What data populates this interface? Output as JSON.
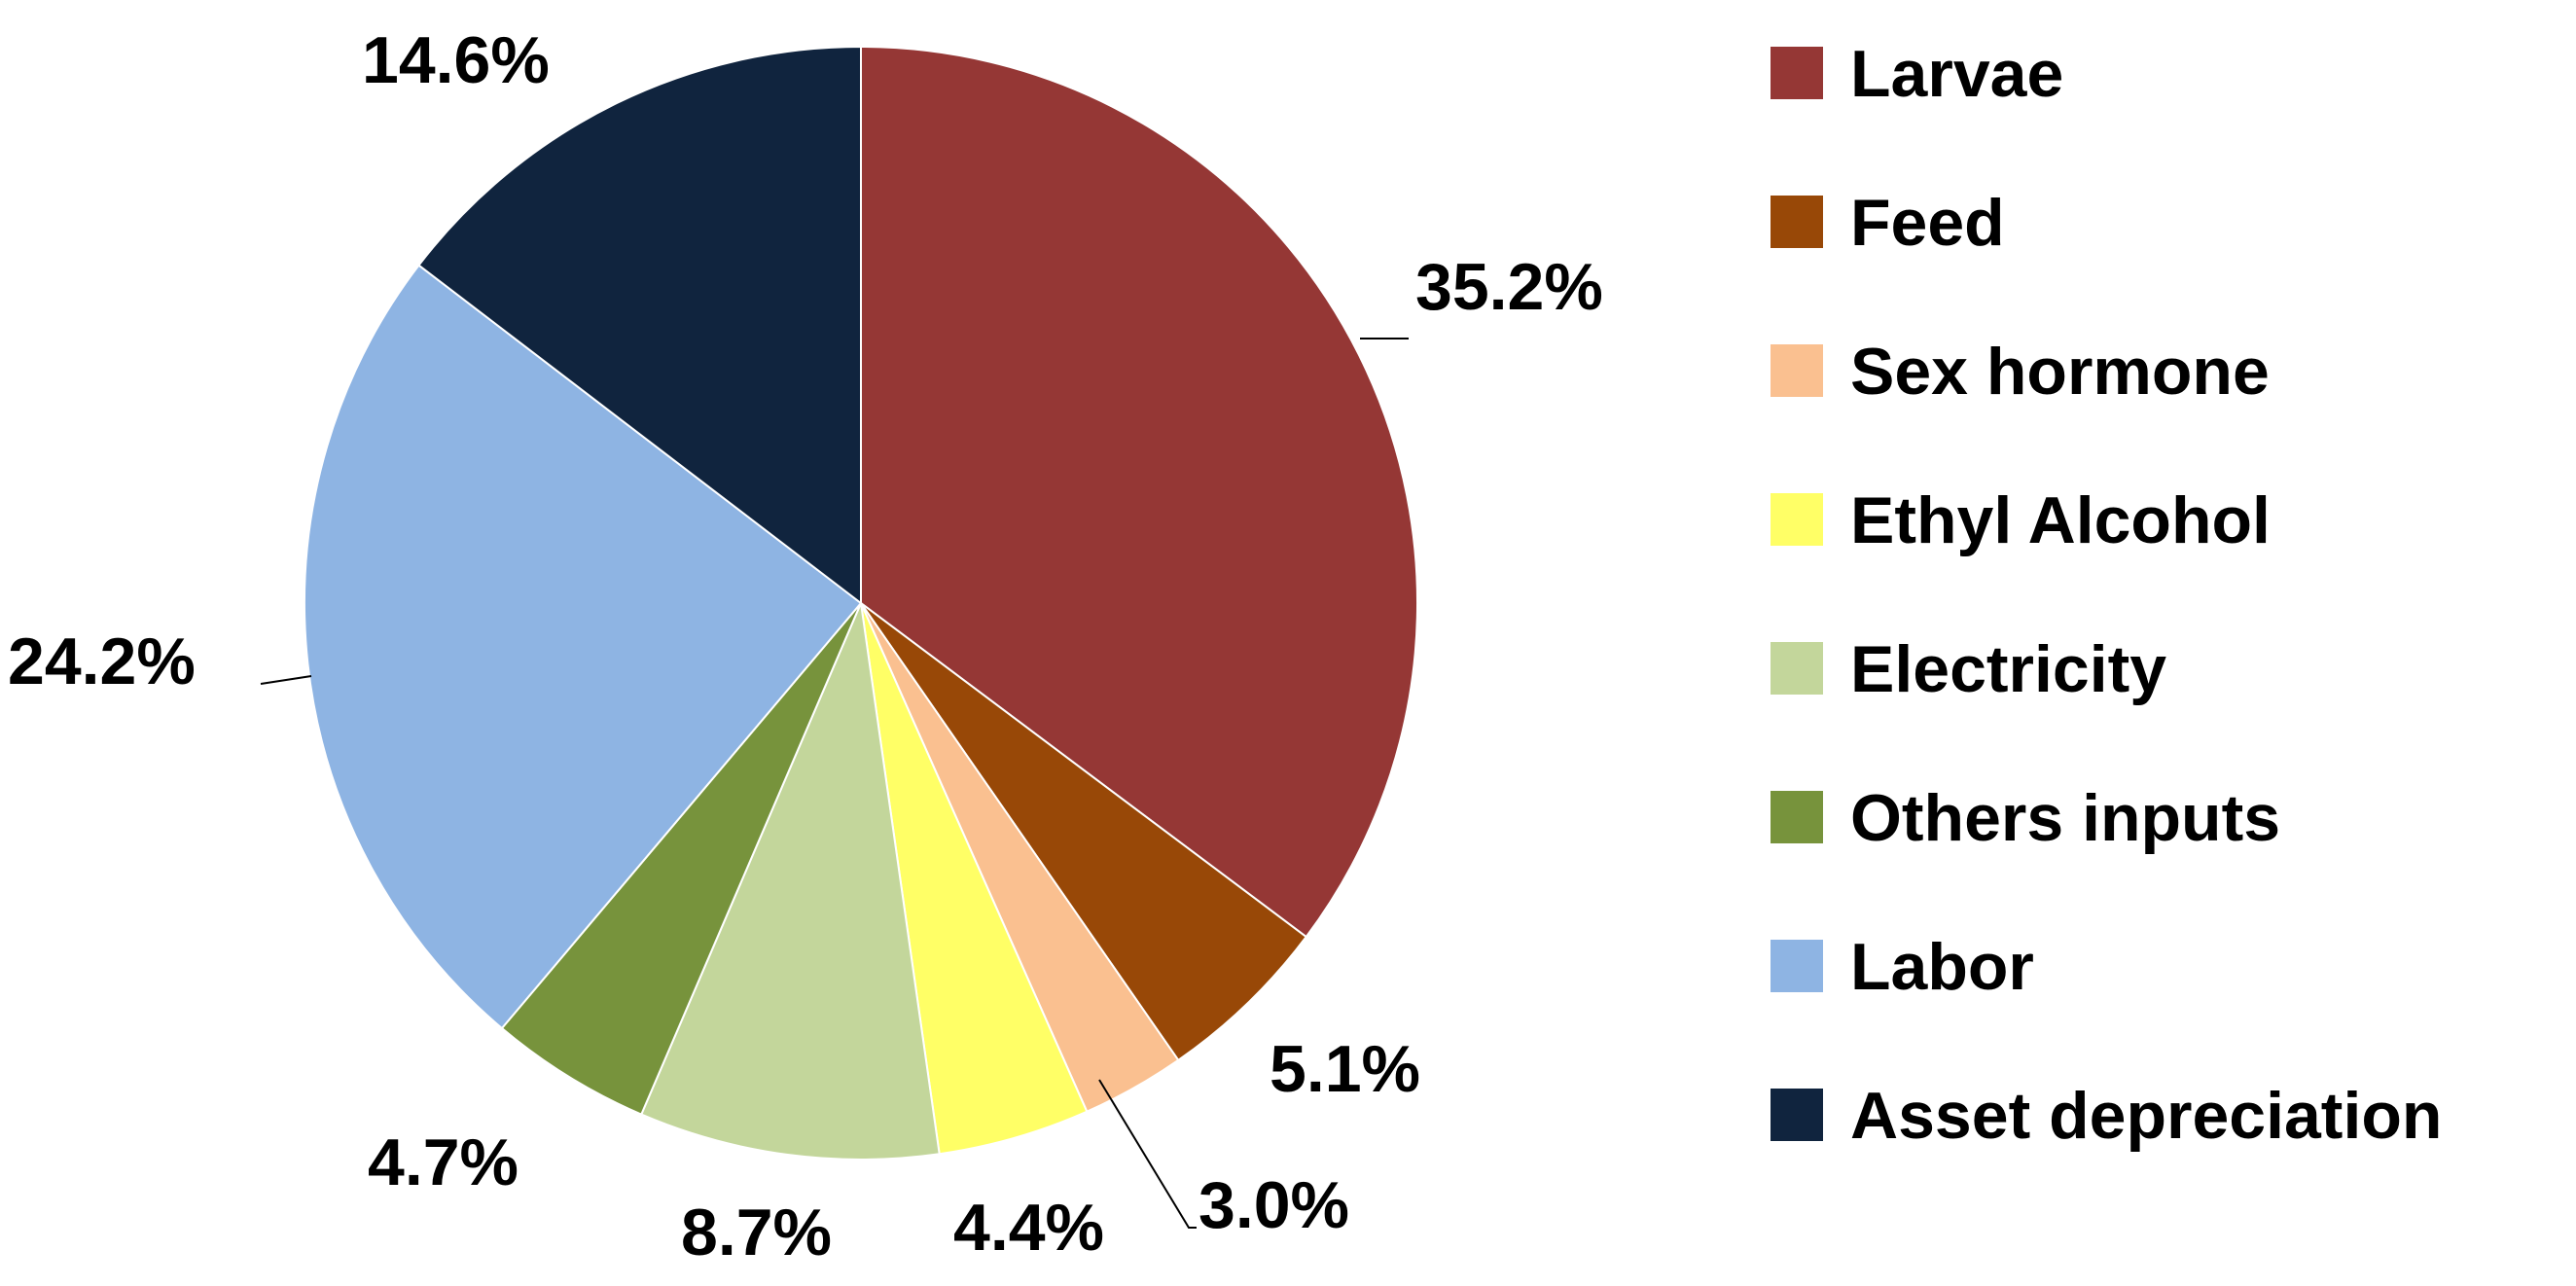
{
  "chart_data": {
    "type": "pie",
    "title": "",
    "start_angle": "12 o'clock",
    "direction": "clockwise",
    "legend_position": "right",
    "slices": [
      {
        "label": "Larvae",
        "value": 35.2,
        "value_label": "35.2%",
        "color": "#953735"
      },
      {
        "label": "Feed",
        "value": 5.1,
        "value_label": "5.1%",
        "color": "#984807"
      },
      {
        "label": "Sex hormone",
        "value": 3.0,
        "value_label": "3.0%",
        "color": "#FAC090"
      },
      {
        "label": "Ethyl Alcohol",
        "value": 4.4,
        "value_label": "4.4%",
        "color": "#FFFF66"
      },
      {
        "label": "Electricity",
        "value": 8.7,
        "value_label": "8.7%",
        "color": "#C3D69B"
      },
      {
        "label": "Others inputs",
        "value": 4.7,
        "value_label": "4.7%",
        "color": "#77933C"
      },
      {
        "label": "Labor",
        "value": 24.2,
        "value_label": "24.2%",
        "color": "#8EB4E3"
      },
      {
        "label": "Asset depreciation",
        "value": 14.6,
        "value_label": "14.6%",
        "color": "#10243E"
      }
    ]
  }
}
